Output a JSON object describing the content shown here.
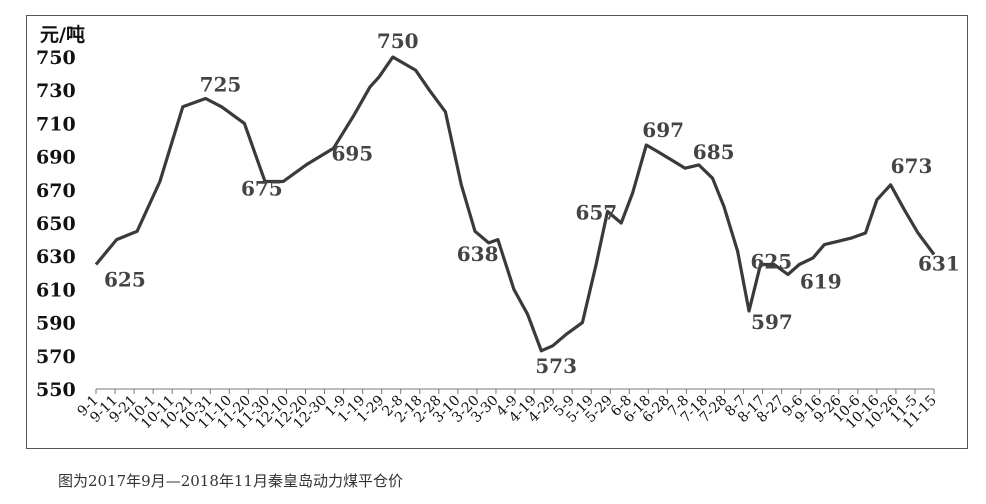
{
  "caption": "图为2017年9月—2018年11月秦皇岛动力煤平仓价",
  "chart_data": {
    "type": "line",
    "title": "",
    "ylabel": "元/吨",
    "xlabel": "",
    "ylim": [
      550,
      750
    ],
    "yticks": [
      550,
      570,
      590,
      610,
      630,
      650,
      670,
      690,
      710,
      730,
      750
    ],
    "grid": false,
    "line_color": "#3a3a3a",
    "x_tick_labels": [
      "9-1",
      "9-11",
      "9-21",
      "10-1",
      "10-11",
      "10-21",
      "10-31",
      "11-10",
      "11-20",
      "11-30",
      "12-10",
      "12-20",
      "12-30",
      "1-9",
      "1-19",
      "1-29",
      "2-8",
      "2-18",
      "2-28",
      "3-10",
      "3-20",
      "3-30",
      "4-9",
      "4-19",
      "4-29",
      "5-9",
      "5-19",
      "5-29",
      "6-8",
      "6-18",
      "6-28",
      "7-8",
      "7-18",
      "7-28",
      "8-7",
      "8-17",
      "8-27",
      "9-6",
      "9-16",
      "9-26",
      "10-6",
      "10-16",
      "10-26",
      "11-5",
      "11-15"
    ],
    "x": [
      0,
      0.9,
      1.8,
      2.8,
      3.8,
      4.8,
      5.8,
      6.8,
      7.8,
      8.8,
      9.6,
      10.8,
      11.8,
      12.8,
      13.4,
      14.3,
      15.3,
      16.3,
      17.3,
      18.0,
      18.8,
      19.7,
      20.5,
      21.3,
      22.1,
      22.9,
      23.5,
      24.2,
      24.8,
      25.4,
      26.3,
      27.0,
      27.8,
      28.6,
      29.3,
      30.1,
      30.9,
      31.6,
      32.4,
      33.3,
      34.2,
      35.1,
      36.1,
      36.8,
      37.7,
      38.4,
      39.3,
      40.2,
      40.9,
      41.8,
      42.7,
      43.6,
      44.4,
      45.0,
      45.9,
      46.8,
      47.6,
      48.4,
      49.3,
      50.2,
      51.1,
      52.0,
      52.9,
      53.8,
      54.7,
      55.4,
      56.3,
      57.1,
      57.9,
      58.7,
      59.6,
      60.5,
      61.3,
      62.2,
      63.1,
      64.0,
      64.9,
      65.8,
      66.7,
      67.6,
      68.5,
      69.4,
      70.2,
      71.1,
      72.0,
      73.0,
      73.9,
      74.8,
      75.7,
      76.6,
      77.5,
      78.4,
      79.3,
      80.2,
      81.1,
      82.0,
      82.9,
      83.8,
      84.7,
      85.6,
      86.5,
      87.4,
      88.2,
      89.1,
      90.0,
      90.9,
      91.8,
      92.7,
      93.6,
      94.5,
      95.4,
      96.3,
      97.2,
      98.1,
      99.0,
      99.9,
      100.8,
      101.7,
      102.6,
      103.5,
      104.4,
      105.3,
      106.2,
      107.1,
      108.0,
      108.9,
      109.8,
      110.7,
      111.6,
      112.5,
      113.4,
      114.3,
      115.2,
      116.1,
      117.0,
      117.9,
      118.8,
      119.7,
      120.6,
      121.5,
      122.4,
      123.3,
      124.2,
      125.1,
      126.0,
      126.9,
      127.8,
      128.7,
      129.6,
      130.5,
      131.4,
      132.3,
      133.2,
      134.1,
      135.0,
      135.9,
      136.8,
      137.7,
      138.6,
      139.5,
      140.4,
      141.3,
      142.2,
      143.1,
      144.0,
      144.9,
      145.8,
      146.7,
      147.6,
      148.5,
      149.4,
      150.3,
      151.2,
      152.1,
      153.0,
      153.9,
      154.8,
      155.7,
      156.6,
      157.5,
      158.4,
      159.3,
      160.2,
      161.1,
      162.0,
      162.9,
      163.8,
      164.7,
      165.6,
      166.5,
      167.4,
      168.3,
      169.2,
      170.1,
      171.0,
      171.9,
      172.8,
      173.7,
      174.6,
      175.5,
      176.4,
      177.3,
      178.2,
      179.1,
      180.0,
      180.9,
      181.8,
      182.7,
      183.6,
      184.5,
      185.4,
      186.3,
      187.2,
      188.1,
      189.0,
      189.9,
      190.8,
      191.7,
      192.6,
      193.5,
      194.4,
      195.3,
      196.2,
      197.1,
      198.0,
      198.9,
      199.8,
      200.7,
      201.6,
      202.5,
      203.4,
      204.3,
      205.2,
      206.1,
      207.0,
      207.9,
      208.8,
      209.7,
      210.6,
      211.5,
      212.4,
      213.3,
      214.2,
      215.1,
      216.0,
      216.9,
      217.8,
      218.7,
      219.6,
      220.5,
      221.4,
      222.3,
      223.2,
      224.1,
      225.0,
      225.9,
      226.8,
      227.7,
      228.6,
      229.5,
      230.4,
      231.3,
      232.2,
      233.1,
      234.0,
      234.9,
      235.8,
      236.7,
      237.6,
      238.5,
      239.4,
      240.3,
      241.2,
      242.1,
      243.0,
      243.9,
      244.8,
      245.7,
      246.6,
      247.5,
      248.4,
      249.3,
      250.2,
      251.1,
      252.0,
      252.9,
      253.8,
      254.7,
      255.6,
      256.5,
      257.4,
      258.3,
      259.2,
      260.1,
      261.0,
      261.9,
      262.8,
      263.7,
      264.6,
      265.5,
      266.4,
      267.3,
      268.2,
      269.1,
      270.0,
      270.9,
      271.8,
      272.7,
      273.6,
      274.5,
      275.4,
      276.3,
      277.2,
      278.1,
      279.0,
      279.9,
      280.8,
      281.7,
      282.6,
      283.5,
      284.4,
      285.3,
      286.2,
      287.1,
      288.0,
      288.9,
      289.8,
      290.7,
      291.6,
      292.5,
      293.4,
      294.3,
      295.2,
      296.1,
      297.0,
      297.9,
      298.8,
      299.7,
      300.6,
      301.5,
      302.4,
      303.3,
      304.2,
      305.1,
      306.0,
      306.9,
      307.8,
      308.7,
      309.6,
      310.5,
      311.4,
      312.3,
      313.2,
      314.1,
      315.0,
      315.9,
      316.8,
      317.7,
      318.6,
      319.5,
      320.4,
      321.3,
      322.2,
      323.1,
      324.0,
      324.9,
      325.8,
      326.7,
      327.6,
      328.5,
      329.4,
      330.3,
      331.2,
      332.1,
      333.0,
      333.9,
      334.8,
      335.7,
      336.6,
      337.5,
      338.4,
      339.3,
      340.2,
      341.1,
      342.0,
      342.9,
      343.8,
      344.7,
      345.6,
      346.5,
      347.4,
      348.3,
      349.2,
      350.1,
      351.0,
      351.9,
      352.8,
      353.7,
      354.6,
      355.5,
      356.4,
      357.3,
      358.2,
      359.1,
      360.0,
      360.9,
      361.8,
      362.7,
      363.6,
      364.5,
      365.4,
      366.3,
      367.2,
      368.1,
      369.0,
      369.9,
      370.8,
      371.7,
      372.6,
      373.5,
      374.4,
      375.3,
      376.2,
      377.1,
      378.0,
      378.9,
      379.8,
      380.7,
      381.6,
      382.5,
      383.4,
      384.3,
      385.2,
      386.1,
      387.0,
      387.9,
      388.8,
      389.7,
      390.6,
      391.5,
      392.4,
      393.3,
      394.2,
      395.1,
      396.0,
      396.9,
      397.8,
      398.7,
      399.6,
      400.5,
      401.4,
      402.3,
      403.2,
      404.1,
      405.0,
      405.9,
      406.8,
      407.7,
      408.6,
      409.5,
      410.4,
      411.3,
      412.2,
      413.1,
      414.0,
      414.9,
      415.8,
      416.7,
      417.6,
      418.5,
      419.4,
      420.3,
      421.2,
      422.1,
      423.0,
      423.9,
      424.8,
      425.7,
      426.6,
      427.5,
      428.4,
      429.3,
      430.2,
      431.1,
      432.0,
      432.9,
      433.8,
      434.7,
      435.6,
      436.5,
      437.4,
      438.3,
      439.2,
      440.1,
      441.0
    ],
    "series": [
      {
        "points": [
          [
            0,
            625
          ],
          [
            0.9,
            640
          ],
          [
            1.8,
            645
          ],
          [
            2.8,
            675
          ],
          [
            3.8,
            720
          ],
          [
            4.8,
            725
          ],
          [
            5.5,
            720
          ],
          [
            6.5,
            710
          ],
          [
            7.4,
            675
          ],
          [
            8.2,
            675
          ],
          [
            9.2,
            685
          ],
          [
            10.4,
            695
          ],
          [
            11.3,
            715
          ],
          [
            12.0,
            732
          ],
          [
            12.4,
            738
          ],
          [
            13.0,
            750
          ],
          [
            14.0,
            742
          ],
          [
            14.6,
            730
          ],
          [
            15.3,
            717
          ],
          [
            16.0,
            673
          ],
          [
            16.6,
            645
          ],
          [
            17.2,
            638
          ],
          [
            17.6,
            640
          ],
          [
            18.3,
            610
          ],
          [
            18.9,
            595
          ],
          [
            19.5,
            573
          ],
          [
            20.0,
            576
          ],
          [
            20.6,
            583
          ],
          [
            21.3,
            590
          ],
          [
            21.9,
            625
          ],
          [
            22.4,
            657
          ],
          [
            23.0,
            650
          ],
          [
            23.5,
            668
          ],
          [
            24.1,
            697
          ],
          [
            24.6,
            693
          ],
          [
            25.2,
            688
          ],
          [
            25.8,
            683
          ],
          [
            26.4,
            685
          ],
          [
            27.0,
            677
          ],
          [
            27.5,
            660
          ],
          [
            28.1,
            633
          ],
          [
            28.6,
            597
          ],
          [
            29.1,
            625
          ],
          [
            29.7,
            625
          ],
          [
            30.3,
            619
          ],
          [
            30.8,
            625
          ],
          [
            31.4,
            629
          ],
          [
            31.9,
            637
          ],
          [
            32.5,
            639
          ],
          [
            33.1,
            641
          ],
          [
            33.7,
            644
          ],
          [
            34.2,
            664
          ],
          [
            34.8,
            673
          ],
          [
            35.4,
            658
          ],
          [
            36.0,
            644
          ],
          [
            36.7,
            631
          ]
        ]
      }
    ],
    "data_labels": [
      {
        "value": "625",
        "x": 0,
        "y": 625
      },
      {
        "value": "725",
        "x": 4.8,
        "y": 725
      },
      {
        "value": "675",
        "x": 7.4,
        "y": 675
      },
      {
        "value": "695",
        "x": 10.4,
        "y": 695
      },
      {
        "value": "750",
        "x": 13.0,
        "y": 750
      },
      {
        "value": "638",
        "x": 17.2,
        "y": 638
      },
      {
        "value": "573",
        "x": 19.5,
        "y": 573
      },
      {
        "value": "657",
        "x": 22.4,
        "y": 657
      },
      {
        "value": "697",
        "x": 24.1,
        "y": 697
      },
      {
        "value": "685",
        "x": 26.4,
        "y": 685
      },
      {
        "value": "625",
        "x": 29.1,
        "y": 625
      },
      {
        "value": "597",
        "x": 28.6,
        "y": 597
      },
      {
        "value": "619",
        "x": 30.3,
        "y": 619
      },
      {
        "value": "673",
        "x": 34.8,
        "y": 673
      },
      {
        "value": "631",
        "x": 36.7,
        "y": 631
      }
    ]
  }
}
